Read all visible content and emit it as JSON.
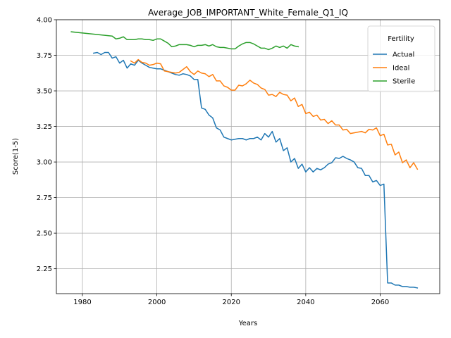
{
  "chart_data": {
    "type": "line",
    "title": "Average_JOB_IMPORTANT_White_Female_Q1_IQ",
    "xlabel": "Years",
    "ylabel": "Score(1-5)",
    "xlim": [
      1973,
      2076
    ],
    "ylim": [
      2.075,
      4.0
    ],
    "xticks": [
      1980,
      2000,
      2020,
      2040,
      2060
    ],
    "xtick_labels": [
      "1980",
      "2000",
      "2020",
      "2040",
      "2060"
    ],
    "yticks": [
      2.25,
      2.5,
      2.75,
      3.0,
      3.25,
      3.5,
      3.75,
      4.0
    ],
    "ytick_labels": [
      "2.25",
      "2.50",
      "2.75",
      "3.00",
      "3.25",
      "3.50",
      "3.75",
      "4.00"
    ],
    "grid": true,
    "legend": {
      "title": "Fertility",
      "position": "top-right"
    },
    "series": [
      {
        "name": "Actual",
        "color": "#1f77b4",
        "x": [
          1983,
          1984,
          1985,
          1986,
          1987,
          1988,
          1989,
          1990,
          1991,
          1992,
          1993,
          1994,
          1995,
          1996,
          1997,
          1998,
          1999,
          2000,
          2001,
          2002,
          2003,
          2004,
          2005,
          2006,
          2007,
          2008,
          2009,
          2010,
          2011,
          2012,
          2013,
          2014,
          2015,
          2016,
          2017,
          2018,
          2019,
          2020,
          2021,
          2022,
          2023,
          2024,
          2025,
          2026,
          2027,
          2028,
          2029,
          2030,
          2031,
          2032,
          2033,
          2034,
          2035,
          2036,
          2037,
          2038,
          2039,
          2040,
          2041,
          2042,
          2043,
          2044,
          2045,
          2046,
          2047,
          2048,
          2049,
          2050,
          2051,
          2052,
          2053,
          2054,
          2055,
          2056,
          2057,
          2058,
          2059,
          2060,
          2061,
          2062,
          2063,
          2064,
          2065,
          2066,
          2067,
          2068,
          2069,
          2070
        ],
        "y": [
          3.765,
          3.77,
          3.755,
          3.77,
          3.77,
          3.73,
          3.74,
          3.695,
          3.715,
          3.66,
          3.69,
          3.68,
          3.715,
          3.695,
          3.68,
          3.665,
          3.66,
          3.655,
          3.655,
          3.645,
          3.635,
          3.625,
          3.615,
          3.61,
          3.62,
          3.615,
          3.605,
          3.58,
          3.58,
          3.38,
          3.37,
          3.33,
          3.31,
          3.24,
          3.225,
          3.175,
          3.165,
          3.155,
          3.16,
          3.165,
          3.165,
          3.155,
          3.165,
          3.165,
          3.175,
          3.155,
          3.2,
          3.175,
          3.215,
          3.14,
          3.165,
          3.08,
          3.1,
          3.0,
          3.025,
          2.955,
          2.985,
          2.93,
          2.96,
          2.93,
          2.955,
          2.945,
          2.96,
          2.985,
          2.995,
          3.03,
          3.025,
          3.04,
          3.025,
          3.015,
          3.0,
          2.96,
          2.955,
          2.905,
          2.905,
          2.86,
          2.87,
          2.835,
          2.845,
          2.15,
          2.15,
          2.135,
          2.135,
          2.125,
          2.125,
          2.12,
          2.12,
          2.115
        ]
      },
      {
        "name": "Ideal",
        "color": "#ff7f0e",
        "x": [
          1993,
          1994,
          1995,
          1996,
          1997,
          1998,
          1999,
          2000,
          2001,
          2002,
          2003,
          2004,
          2005,
          2006,
          2007,
          2008,
          2009,
          2010,
          2011,
          2012,
          2013,
          2014,
          2015,
          2016,
          2017,
          2018,
          2019,
          2020,
          2021,
          2022,
          2023,
          2024,
          2025,
          2026,
          2027,
          2028,
          2029,
          2030,
          2031,
          2032,
          2033,
          2034,
          2035,
          2036,
          2037,
          2038,
          2039,
          2040,
          2041,
          2042,
          2043,
          2044,
          2045,
          2046,
          2047,
          2048,
          2049,
          2050,
          2051,
          2052,
          2053,
          2054,
          2055,
          2056,
          2057,
          2058,
          2059,
          2060,
          2061,
          2062,
          2063,
          2064,
          2065,
          2066,
          2067,
          2068,
          2069,
          2070
        ],
        "y": [
          3.71,
          3.695,
          3.72,
          3.7,
          3.695,
          3.68,
          3.685,
          3.695,
          3.69,
          3.64,
          3.635,
          3.63,
          3.625,
          3.63,
          3.65,
          3.67,
          3.635,
          3.615,
          3.64,
          3.625,
          3.62,
          3.6,
          3.615,
          3.57,
          3.57,
          3.535,
          3.525,
          3.505,
          3.505,
          3.54,
          3.535,
          3.55,
          3.575,
          3.555,
          3.545,
          3.52,
          3.51,
          3.47,
          3.475,
          3.46,
          3.49,
          3.475,
          3.47,
          3.43,
          3.45,
          3.39,
          3.405,
          3.34,
          3.35,
          3.32,
          3.33,
          3.295,
          3.3,
          3.27,
          3.29,
          3.26,
          3.26,
          3.225,
          3.23,
          3.2,
          3.205,
          3.21,
          3.215,
          3.205,
          3.23,
          3.225,
          3.24,
          3.185,
          3.195,
          3.12,
          3.125,
          3.05,
          3.07,
          2.995,
          3.015,
          2.96,
          2.995,
          2.95
        ]
      },
      {
        "name": "Sterile",
        "color": "#2ca02c",
        "x": [
          1977,
          1988,
          1989,
          1990,
          1991,
          1992,
          1993,
          1994,
          1995,
          1996,
          1997,
          1998,
          1999,
          2000,
          2001,
          2002,
          2003,
          2004,
          2005,
          2006,
          2007,
          2008,
          2009,
          2010,
          2011,
          2012,
          2013,
          2014,
          2015,
          2016,
          2017,
          2018,
          2019,
          2020,
          2021,
          2022,
          2023,
          2024,
          2025,
          2026,
          2027,
          2028,
          2029,
          2030,
          2031,
          2032,
          2033,
          2034,
          2035,
          2036,
          2037,
          2038
        ],
        "y": [
          3.915,
          3.885,
          3.865,
          3.87,
          3.88,
          3.86,
          3.86,
          3.86,
          3.865,
          3.865,
          3.86,
          3.86,
          3.855,
          3.865,
          3.865,
          3.85,
          3.835,
          3.81,
          3.815,
          3.825,
          3.825,
          3.825,
          3.82,
          3.81,
          3.82,
          3.82,
          3.825,
          3.815,
          3.825,
          3.81,
          3.805,
          3.805,
          3.8,
          3.795,
          3.795,
          3.815,
          3.83,
          3.84,
          3.84,
          3.83,
          3.815,
          3.8,
          3.8,
          3.79,
          3.8,
          3.815,
          3.805,
          3.815,
          3.8,
          3.825,
          3.815,
          3.81
        ]
      }
    ]
  }
}
